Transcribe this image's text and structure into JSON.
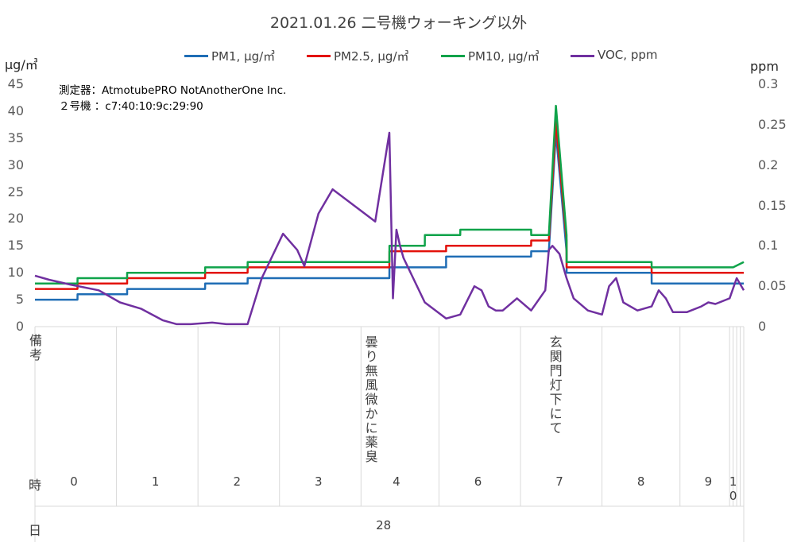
{
  "chart_data": {
    "type": "line",
    "title": "2021.01.26 二号機ウォーキング以外",
    "y_left_label": "μg/㎥",
    "y_right_label": "ppm",
    "y_left_ticks": [
      "0",
      "5",
      "10",
      "15",
      "20",
      "25",
      "30",
      "35",
      "40",
      "45"
    ],
    "y_right_ticks": [
      "0",
      "0.05",
      "0.1",
      "0.15",
      "0.2",
      "0.25",
      "0.3"
    ],
    "ylim_left": [
      0,
      45
    ],
    "ylim_right": [
      0,
      0.3
    ],
    "x_range": [
      0,
      100
    ],
    "annotation_lines": [
      "測定器：AtmotubePRO NotAnotherOne Inc.",
      "２号機 ：c7:40:10:9c:29:90"
    ],
    "legend_position": "top",
    "series": [
      {
        "name": "PM1, μg/㎥",
        "axis": "left",
        "color": "#1F6DB5",
        "x": [
          0,
          6,
          6.01,
          13,
          13.01,
          24,
          24.01,
          30,
          30.01,
          50,
          50.01,
          58,
          58.01,
          70,
          70.01,
          72.5,
          73.5,
          75,
          75.01,
          87,
          87.01,
          98.5,
          100
        ],
        "y": [
          5,
          5,
          6,
          6,
          7,
          7,
          8,
          8,
          9,
          9,
          11,
          11,
          13,
          13,
          14,
          14,
          36,
          14,
          10,
          10,
          8,
          8,
          8
        ]
      },
      {
        "name": "PM2.5, μg/㎥",
        "axis": "left",
        "color": "#E3120B",
        "x": [
          0,
          6,
          6.01,
          13,
          13.01,
          24,
          24.01,
          30,
          30.01,
          50,
          50.01,
          58,
          58.01,
          70,
          70.01,
          72.5,
          73.5,
          75,
          75.01,
          87,
          87.01,
          98.5,
          100
        ],
        "y": [
          7,
          7,
          8,
          8,
          9,
          9,
          10,
          10,
          11,
          11,
          14,
          14,
          15,
          15,
          16,
          16,
          38,
          16,
          11,
          11,
          10,
          10,
          10
        ]
      },
      {
        "name": "PM10, μg/㎥",
        "axis": "left",
        "color": "#0FA34A",
        "x": [
          0,
          6,
          6.01,
          13,
          13.01,
          24,
          24.01,
          30,
          30.01,
          50,
          50.01,
          55,
          55.01,
          60,
          60.01,
          70,
          70.01,
          72.5,
          73.5,
          75,
          75.01,
          87,
          87.01,
          98.5,
          100
        ],
        "y": [
          8,
          8,
          9,
          9,
          10,
          10,
          11,
          11,
          12,
          12,
          15,
          15,
          17,
          17,
          18,
          18,
          17,
          17,
          41,
          17,
          12,
          12,
          11,
          11,
          12
        ]
      },
      {
        "name": "VOC, ppm",
        "axis": "right",
        "color": "#7030A0",
        "x": [
          0,
          2,
          5,
          9,
          12,
          15,
          18,
          20,
          22,
          25,
          27,
          30,
          32,
          35,
          37,
          38,
          40,
          42,
          45,
          48,
          50,
          50.5,
          51,
          51.5,
          52,
          55,
          58,
          60,
          62,
          63,
          64,
          65,
          66,
          68,
          70,
          72,
          72.5,
          73,
          74,
          75,
          76,
          78,
          80,
          81,
          82,
          83,
          85,
          87,
          88,
          89,
          90,
          92,
          94,
          95,
          96,
          98,
          99,
          100
        ],
        "y": [
          0.063,
          0.058,
          0.052,
          0.045,
          0.03,
          0.022,
          0.008,
          0.003,
          0.003,
          0.005,
          0.003,
          0.003,
          0.06,
          0.115,
          0.095,
          0.075,
          0.14,
          0.17,
          0.15,
          0.13,
          0.24,
          0.035,
          0.12,
          0.1,
          0.085,
          0.03,
          0.01,
          0.015,
          0.05,
          0.045,
          0.025,
          0.02,
          0.02,
          0.035,
          0.02,
          0.045,
          0.095,
          0.1,
          0.09,
          0.06,
          0.035,
          0.02,
          0.015,
          0.05,
          0.06,
          0.03,
          0.02,
          0.025,
          0.045,
          0.035,
          0.018,
          0.018,
          0.025,
          0.03,
          0.028,
          0.035,
          0.06,
          0.045
        ]
      }
    ],
    "remarks_label": "備考",
    "remarks": [
      {
        "text": "曇り無風微かに薬臭",
        "x": 47.5
      },
      {
        "text": "玄関門灯下にて",
        "x": 73.5
      }
    ],
    "hour_label": "時",
    "hours": [
      {
        "label": "0",
        "x": 5.5
      },
      {
        "label": "1",
        "x": 17
      },
      {
        "label": "2",
        "x": 28.5
      },
      {
        "label": "3",
        "x": 40
      },
      {
        "label": "4",
        "x": 51
      },
      {
        "label": "6",
        "x": 62.5
      },
      {
        "label": "7",
        "x": 74
      },
      {
        "label": "8",
        "x": 85.5
      },
      {
        "label": "9",
        "x": 95
      },
      {
        "label": "10",
        "x": 98.5
      }
    ],
    "hour_separators": [
      11.5,
      23,
      34.5,
      46,
      57,
      68.5,
      80,
      91,
      98,
      98.5,
      99,
      99.5,
      100
    ],
    "day_label": "日",
    "day_value": "28",
    "day_x": 49
  }
}
